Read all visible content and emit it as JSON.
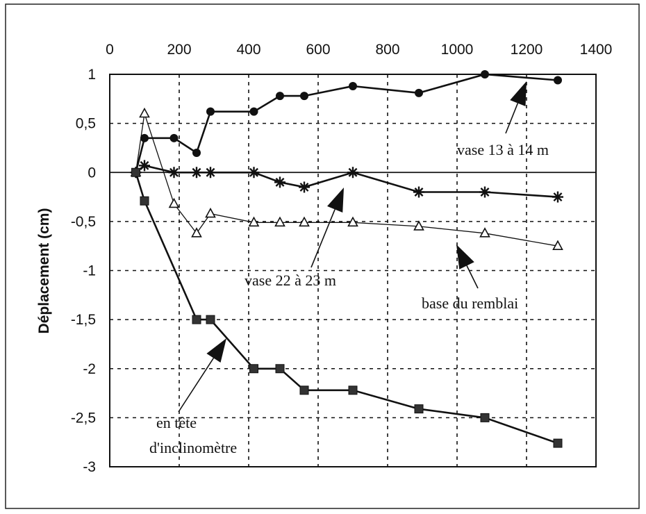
{
  "chart_data": {
    "type": "line",
    "title": "",
    "xlabel": "",
    "ylabel": "Déplacement (cm)",
    "xlim": [
      0,
      1400
    ],
    "ylim": [
      -3,
      1
    ],
    "x_ticks": [
      "0",
      "200",
      "400",
      "600",
      "800",
      "1000",
      "1200",
      "1400"
    ],
    "y_ticks": [
      "1",
      "0,5",
      "0",
      "-0,5",
      "-1",
      "-1,5",
      "-2",
      "-2,5",
      "-3"
    ],
    "x_axis_position": "top",
    "grid": "dashed",
    "series": [
      {
        "name": "vase 13 à 14 m",
        "marker": "circle",
        "x": [
          75,
          100,
          185,
          250,
          290,
          415,
          490,
          560,
          700,
          890,
          1080,
          1290
        ],
        "y": [
          0,
          0.35,
          0.35,
          0.2,
          0.62,
          0.62,
          0.78,
          0.78,
          0.88,
          0.81,
          1.0,
          0.94
        ]
      },
      {
        "name": "vase 22 à 23 m",
        "marker": "asterisk",
        "x": [
          75,
          100,
          185,
          250,
          290,
          415,
          490,
          560,
          700,
          890,
          1080,
          1290
        ],
        "y": [
          0,
          0.07,
          0,
          0,
          0,
          0,
          -0.1,
          -0.15,
          0,
          -0.2,
          -0.2,
          -0.25
        ]
      },
      {
        "name": "base du remblai",
        "marker": "triangle",
        "x": [
          75,
          100,
          185,
          250,
          290,
          415,
          490,
          560,
          700,
          890,
          1080,
          1290
        ],
        "y": [
          0,
          0.6,
          -0.32,
          -0.62,
          -0.42,
          -0.51,
          -0.51,
          -0.51,
          -0.51,
          -0.55,
          -0.62,
          -0.75
        ]
      },
      {
        "name": "en tête d'inclinomètre",
        "marker": "square",
        "x": [
          75,
          100,
          250,
          290,
          415,
          490,
          560,
          700,
          890,
          1080,
          1290
        ],
        "y": [
          0,
          -0.29,
          -1.5,
          -1.5,
          -2.0,
          -2.0,
          -2.22,
          -2.22,
          -2.41,
          -2.5,
          -2.76
        ]
      }
    ],
    "annotations": [
      {
        "line1": "vase 13 à 14 m",
        "line2": ""
      },
      {
        "line1": "vase 22 à 23 m",
        "line2": ""
      },
      {
        "line1": "base du remblai",
        "line2": ""
      },
      {
        "line1": "en tête",
        "line2": "d'inclinomètre"
      }
    ]
  }
}
